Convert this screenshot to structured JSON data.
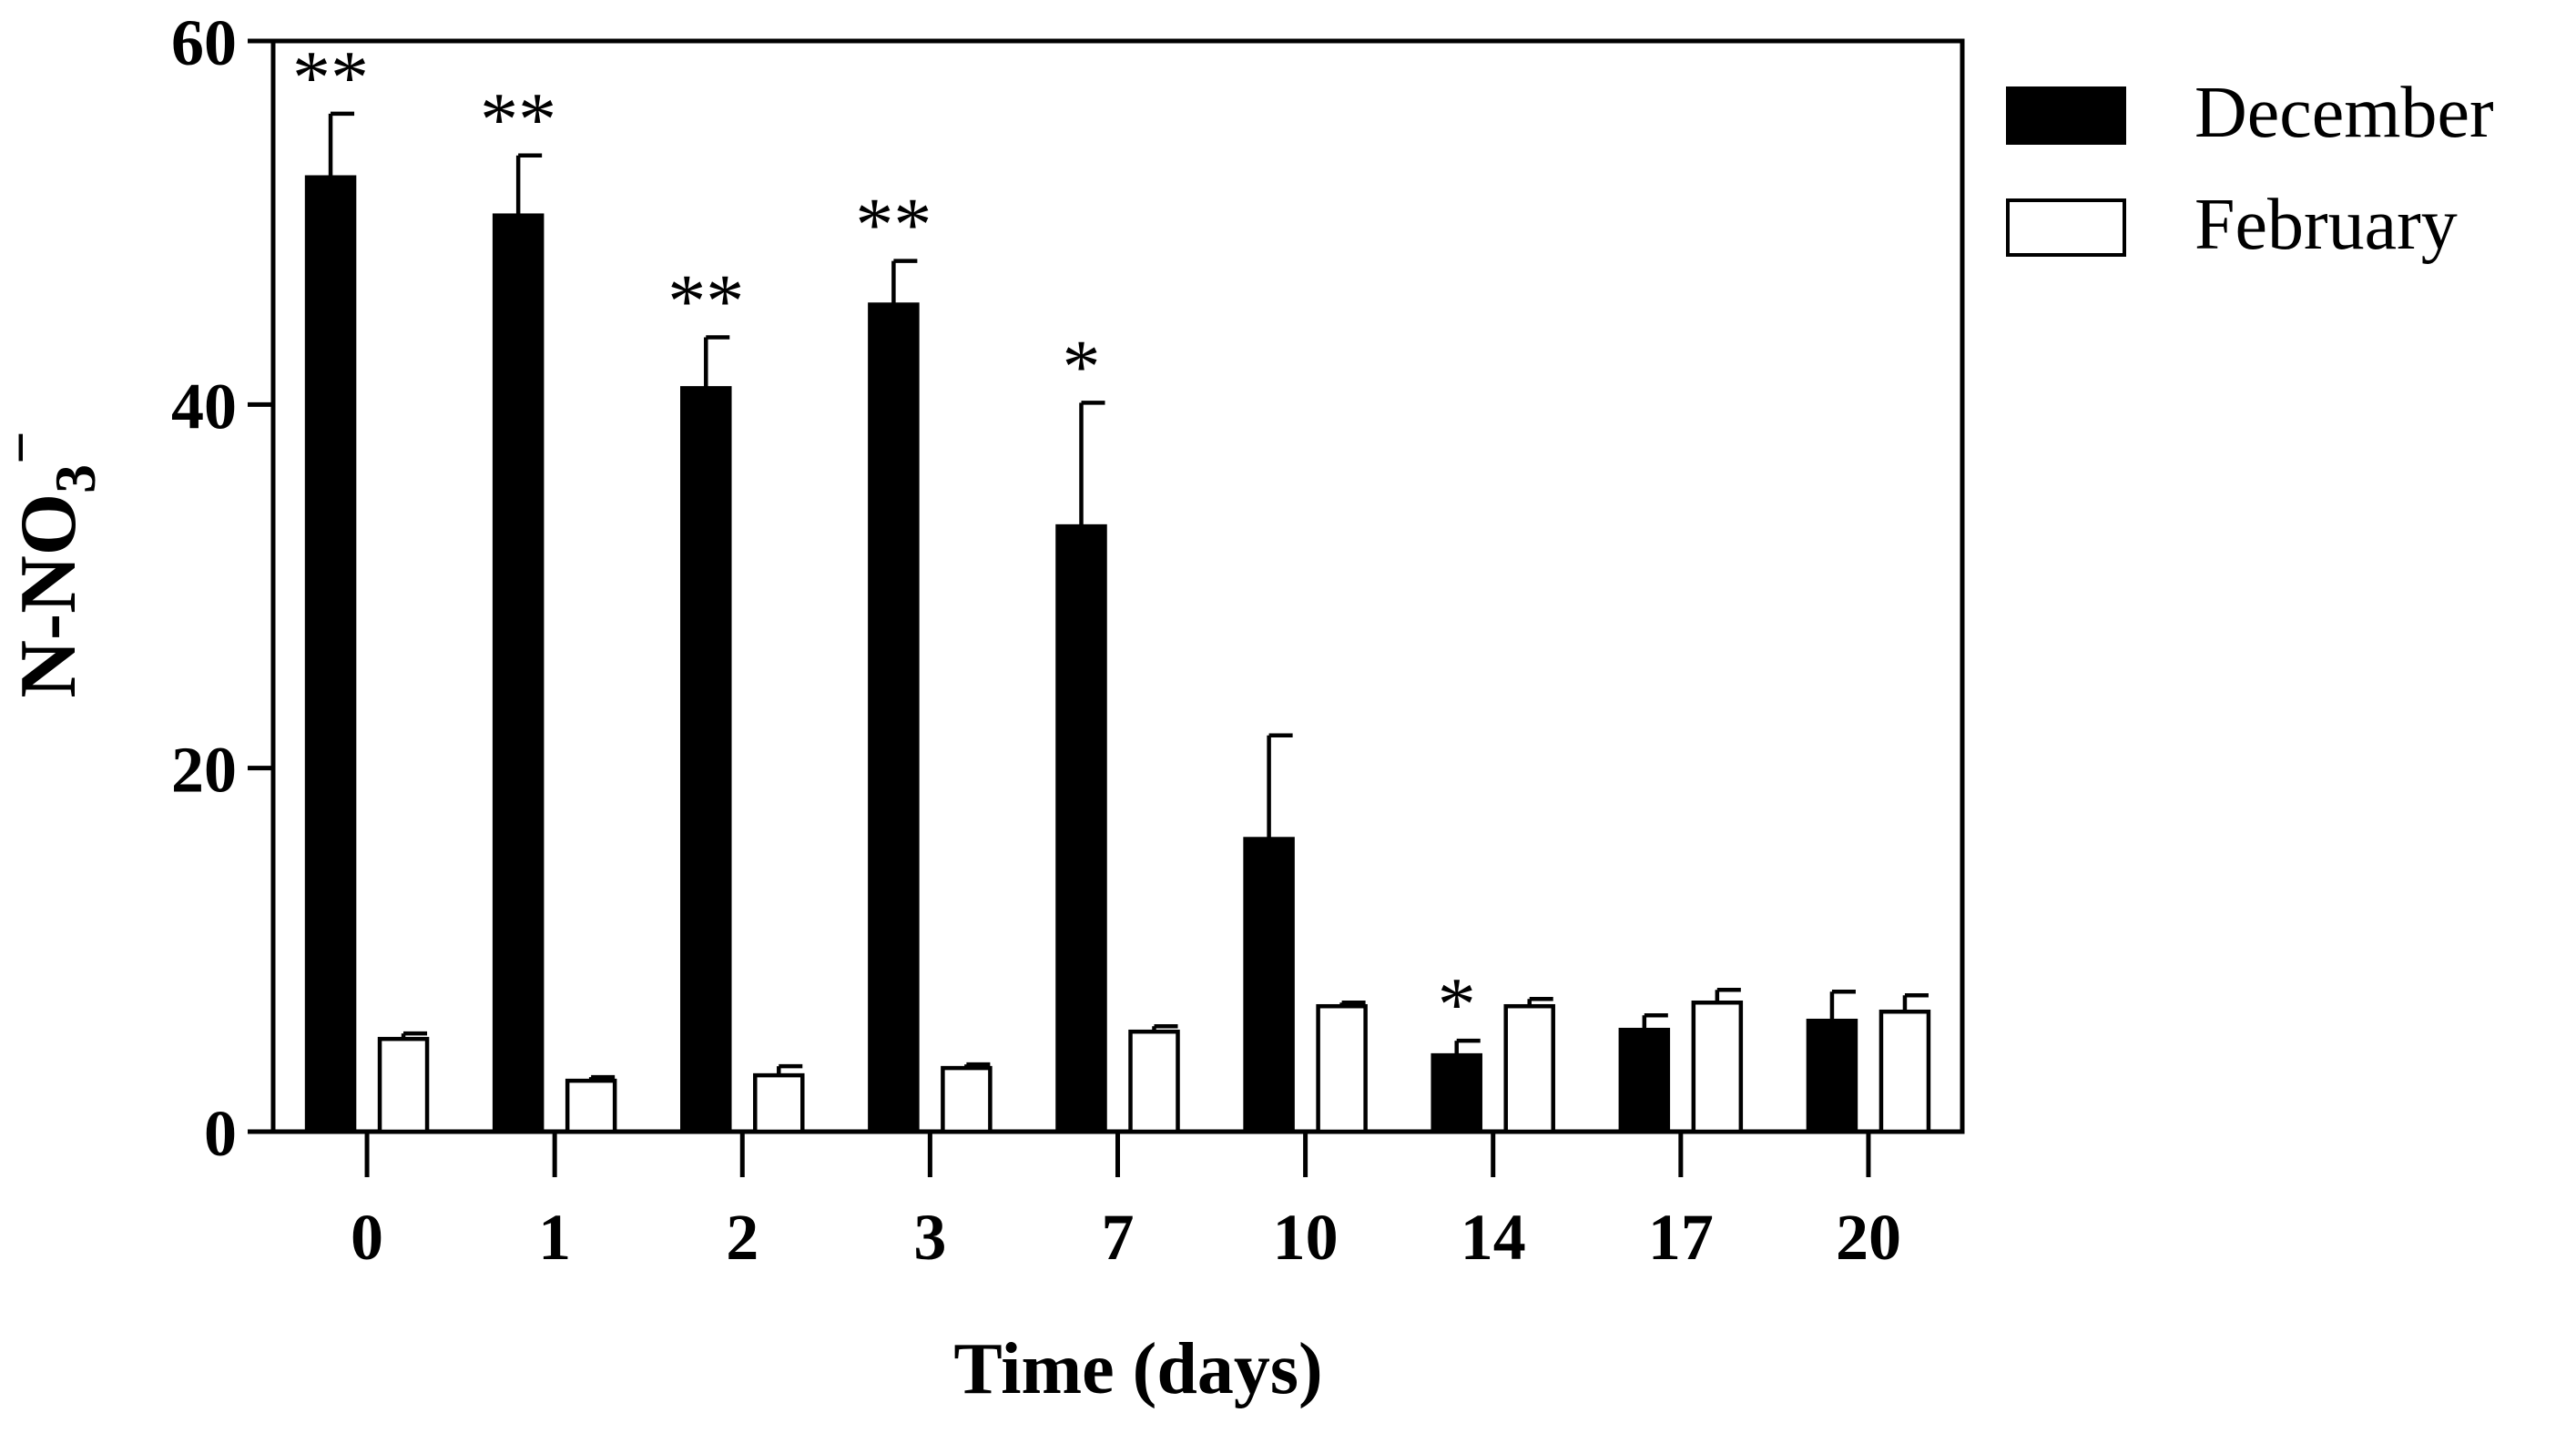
{
  "chart_data": {
    "type": "bar",
    "title": "",
    "xlabel": "Time (days)",
    "ylabel": "N-NO3−",
    "ylabel_parts": {
      "main": "N-NO",
      "sub": "3",
      "sup": "−"
    },
    "ylim": [
      0,
      60
    ],
    "yticks": [
      "0",
      "20",
      "40",
      "60"
    ],
    "categories": [
      "0",
      "1",
      "2",
      "3",
      "7",
      "10",
      "14",
      "17",
      "20"
    ],
    "series": [
      {
        "name": "December",
        "color": "#000000",
        "values": [
          52.5,
          50.4,
          40.9,
          45.5,
          33.3,
          16.1,
          4.2,
          5.6,
          6.1
        ],
        "errors": [
          3.5,
          3.3,
          2.8,
          2.4,
          6.8,
          5.7,
          0.8,
          0.8,
          1.6
        ]
      },
      {
        "name": "February",
        "color": "#ffffff",
        "values": [
          5.1,
          2.8,
          3.1,
          3.5,
          5.5,
          6.9,
          6.9,
          7.1,
          6.6
        ],
        "errors": [
          0.3,
          0.2,
          0.5,
          0.2,
          0.3,
          0.2,
          0.4,
          0.7,
          0.9
        ]
      }
    ],
    "annotations": [
      "**",
      "**",
      "**",
      "**",
      "*",
      "",
      "*",
      "",
      ""
    ],
    "legend_position": "top-right"
  }
}
